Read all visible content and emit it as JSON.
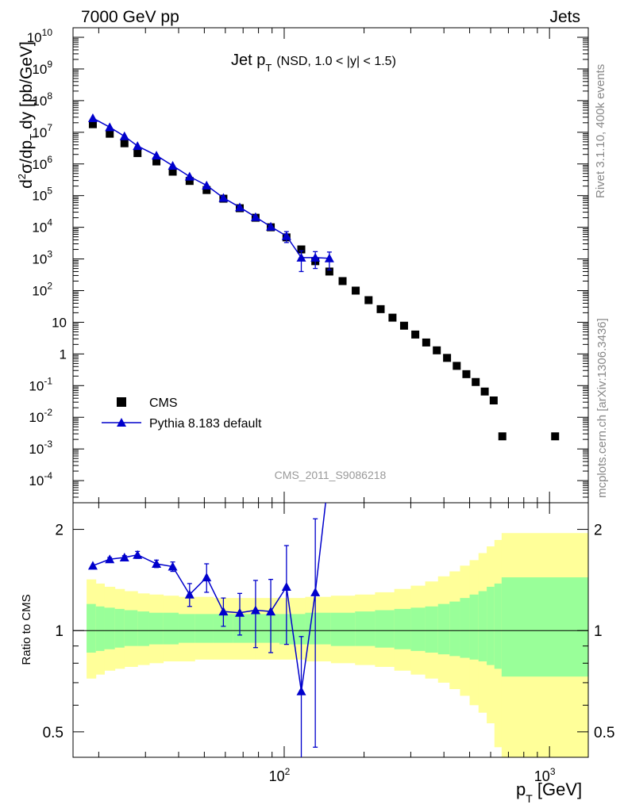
{
  "header": {
    "left": "7000 GeV pp",
    "right": "Jets"
  },
  "side_labels": {
    "top": "Rivet 3.1.10,  400k events",
    "bottom": "mcplots.cern.ch [arXiv:1306.3436]"
  },
  "chart_data": [
    {
      "type": "scatter",
      "panel": "main",
      "title": "Jet p_T (NSD, 1.0 < |y| < 1.5)",
      "title_main": "Jet p",
      "title_sub": "T",
      "title_extra": "(NSD, 1.0 < |y| < 1.5)",
      "watermark": "CMS_2011_S9086218",
      "ylabel": "d²σ/dp_T dy [pb/GeV]",
      "xlabel": "p_T [GeV]",
      "xscale": "log",
      "yscale": "log",
      "xlim": [
        16,
        1400
      ],
      "ylim": [
        2e-05,
        20000000000
      ],
      "legend_position": "bottom-left",
      "y_tick_labels": [
        "10^10",
        "10^9",
        "10^8",
        "10^7",
        "10^6",
        "10^5",
        "10^4",
        "10^3",
        "10^2",
        "10",
        "1",
        "10^-1",
        "10^-2",
        "10^-3",
        "10^-4"
      ],
      "x_tick_labels": [
        "10^2",
        "10^3"
      ],
      "series": [
        {
          "name": "CMS",
          "marker": "square",
          "color": "#000000",
          "x": [
            19,
            22,
            25,
            28,
            33,
            38,
            44,
            51,
            59,
            68,
            78,
            89,
            102,
            116,
            131,
            148,
            166,
            186,
            208,
            231,
            256,
            283,
            312,
            343,
            376,
            411,
            447,
            486,
            527,
            570,
            616,
            664,
            1050
          ],
          "y": [
            18000000,
            9000000,
            4500000,
            2200000,
            1200000,
            570000,
            290000,
            150000,
            80000,
            40000,
            20000,
            10000,
            4800,
            2000,
            850,
            400,
            200,
            100,
            50,
            26,
            14,
            7.8,
            4.1,
            2.3,
            1.3,
            0.75,
            0.42,
            0.23,
            0.13,
            0.065,
            0.034,
            0.0025,
            0
          ]
        },
        {
          "name": "Pythia 8.183 default",
          "marker": "triangle",
          "color": "#0000cc",
          "x": [
            19,
            22,
            25,
            28,
            33,
            38,
            44,
            51,
            59,
            68,
            78,
            89,
            102,
            116,
            131,
            148
          ],
          "y": [
            28000000,
            14500000,
            7500000,
            3700000,
            1850000,
            880000,
            400000,
            210000,
            85000,
            43000,
            21000,
            10500,
            5300,
            1100,
            1100,
            1050
          ],
          "yerr": [
            0,
            0,
            0,
            0,
            0,
            0,
            0,
            0,
            0,
            0,
            0,
            0,
            2000,
            700,
            600,
            600
          ]
        }
      ]
    },
    {
      "type": "line",
      "panel": "ratio",
      "ylabel": "Ratio to CMS",
      "yscale": "log",
      "ylim": [
        0.42,
        2.4
      ],
      "y_tick_labels": [
        "0.5",
        "1",
        "2"
      ],
      "reference_line": 1,
      "bands": {
        "edges": [
          18,
          19.5,
          21,
          23,
          25,
          28,
          31,
          35,
          40,
          46,
          54,
          64,
          78,
          96,
          120,
          150,
          185,
          220,
          260,
          300,
          340,
          380,
          420,
          460,
          500,
          540,
          580,
          620,
          660,
          1400
        ],
        "inner_lo": [
          0.86,
          0.87,
          0.88,
          0.89,
          0.9,
          0.9,
          0.91,
          0.91,
          0.92,
          0.92,
          0.92,
          0.92,
          0.92,
          0.91,
          0.91,
          0.9,
          0.9,
          0.89,
          0.88,
          0.87,
          0.86,
          0.85,
          0.84,
          0.83,
          0.82,
          0.81,
          0.79,
          0.77,
          0.73
        ],
        "inner_hi": [
          1.2,
          1.18,
          1.17,
          1.16,
          1.15,
          1.14,
          1.13,
          1.13,
          1.12,
          1.12,
          1.12,
          1.12,
          1.12,
          1.12,
          1.13,
          1.13,
          1.14,
          1.15,
          1.16,
          1.17,
          1.18,
          1.2,
          1.22,
          1.25,
          1.28,
          1.31,
          1.35,
          1.38,
          1.44
        ],
        "outer_lo": [
          0.72,
          0.74,
          0.76,
          0.77,
          0.78,
          0.79,
          0.8,
          0.81,
          0.81,
          0.82,
          0.82,
          0.82,
          0.82,
          0.82,
          0.81,
          0.8,
          0.79,
          0.78,
          0.76,
          0.74,
          0.72,
          0.7,
          0.67,
          0.64,
          0.6,
          0.57,
          0.53,
          0.45,
          0.38
        ],
        "outer_hi": [
          1.42,
          1.38,
          1.35,
          1.33,
          1.31,
          1.29,
          1.28,
          1.27,
          1.26,
          1.26,
          1.25,
          1.25,
          1.25,
          1.25,
          1.26,
          1.27,
          1.28,
          1.3,
          1.33,
          1.36,
          1.4,
          1.45,
          1.5,
          1.56,
          1.62,
          1.7,
          1.78,
          1.86,
          1.95
        ],
        "colors": {
          "inner": "#99ff99",
          "outer": "#ffff99"
        }
      },
      "series": [
        {
          "name": "Pythia 8.183 default",
          "color": "#0000cc",
          "x": [
            19,
            22,
            25,
            28,
            33,
            38,
            44,
            51,
            59,
            68,
            78,
            89,
            102,
            116,
            131,
            148
          ],
          "y": [
            1.56,
            1.63,
            1.65,
            1.68,
            1.58,
            1.55,
            1.28,
            1.44,
            1.14,
            1.13,
            1.15,
            1.14,
            1.35,
            0.66,
            1.3,
            3.0
          ],
          "yerr": [
            0,
            0.02,
            0.02,
            0.04,
            0.04,
            0.05,
            0.1,
            0.14,
            0.11,
            0.16,
            0.26,
            0.28,
            0.44,
            0.3,
            0.85,
            0.0
          ]
        }
      ]
    }
  ]
}
